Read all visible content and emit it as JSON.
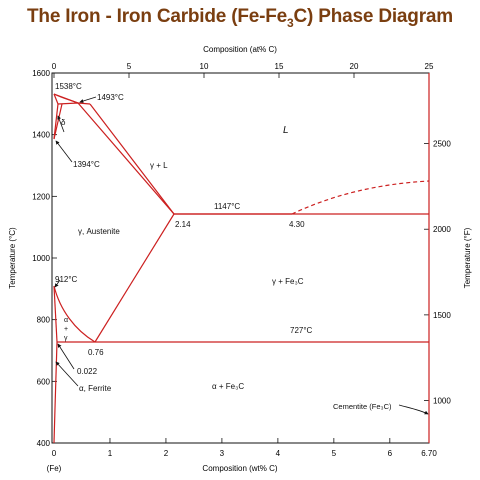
{
  "title": {
    "pre": "The Iron - Iron Carbide (Fe-Fe",
    "sub": "3",
    "post": "C) Phase Diagram"
  },
  "axes": {
    "x_bottom_label": "Composition (wt% C)",
    "x_top_label": "Composition (at% C)",
    "y_left_label": "Temperature (°C)",
    "y_right_label": "Temperature (°F)",
    "fe_label": "(Fe)",
    "wt_ticks": [
      {
        "v": 0,
        "label": "0"
      },
      {
        "v": 1,
        "label": "1"
      },
      {
        "v": 2,
        "label": "2"
      },
      {
        "v": 3,
        "label": "3"
      },
      {
        "v": 4,
        "label": "4"
      },
      {
        "v": 5,
        "label": "5"
      },
      {
        "v": 6,
        "label": "6"
      },
      {
        "v": 6.7,
        "label": "6.70"
      }
    ],
    "at_ticks": [
      {
        "v": 0,
        "label": "0"
      },
      {
        "v": 5,
        "label": "5"
      },
      {
        "v": 10,
        "label": "10"
      },
      {
        "v": 15,
        "label": "15"
      },
      {
        "v": 20,
        "label": "20"
      },
      {
        "v": 25,
        "label": "25"
      }
    ],
    "c_ticks": [
      {
        "v": 400,
        "label": "400"
      },
      {
        "v": 600,
        "label": "600"
      },
      {
        "v": 800,
        "label": "800"
      },
      {
        "v": 1000,
        "label": "1000"
      },
      {
        "v": 1200,
        "label": "1200"
      },
      {
        "v": 1400,
        "label": "1400"
      },
      {
        "v": 1600,
        "label": "1600"
      }
    ],
    "f_ticks": [
      {
        "v": 1000,
        "label": "1000"
      },
      {
        "v": 1500,
        "label": "1500"
      },
      {
        "v": 2000,
        "label": "2000"
      },
      {
        "v": 2500,
        "label": "2500"
      }
    ]
  },
  "point_labels": {
    "t1538": "1538°C",
    "t1493": "1493°C",
    "t1394": "1394°C",
    "t1147": "1147°C",
    "t912": "912°C",
    "t727": "727°C",
    "c214": "2.14",
    "c430": "4.30",
    "c076": "0.76",
    "c0022": "0.022"
  },
  "phase_labels": {
    "liquid": "L",
    "gamma_l": "γ + L",
    "delta": "δ",
    "austenite": "γ, Austenite",
    "gamma_fe3c": "γ + Fe₃C",
    "alpha_gamma_a": "α",
    "alpha_gamma_plus": "+",
    "alpha_gamma_g": "γ",
    "ferrite": "α, Ferrite",
    "alpha_fe3c": "α + Fe₃C",
    "cementite": "Cementite (Fe₃C)"
  },
  "colors": {
    "phase_line": "#cc2020",
    "axis": "#111111",
    "title": "#7a3e10"
  }
}
